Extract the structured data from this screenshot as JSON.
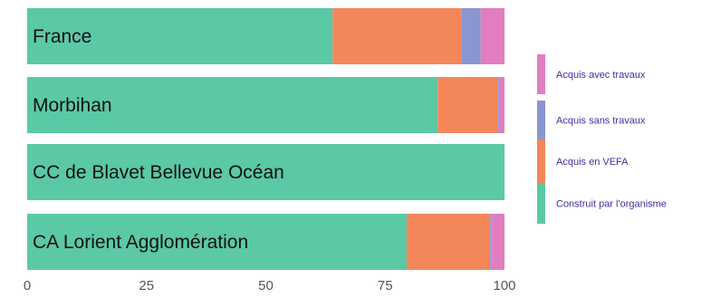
{
  "colors": {
    "construit": "#5bc8a6",
    "vefa": "#f4875a",
    "sans_travaux": "#8b95cf",
    "avec_travaux": "#e07ec0",
    "background": "#ffffff",
    "tick_text": "#555555",
    "legend_text": "#3a2fa0"
  },
  "chart_data": {
    "type": "bar",
    "orientation": "horizontal",
    "stacked": true,
    "title": "",
    "xlabel": "",
    "ylabel": "",
    "xlim": [
      0,
      100
    ],
    "x_ticks": [
      "0",
      "25",
      "50",
      "75",
      "100"
    ],
    "grid": false,
    "legend_position": "right",
    "categories": [
      "France",
      "Morbihan",
      "CC de Blavet Bellevue Océan",
      "CA Lorient Agglomération"
    ],
    "series": [
      {
        "name": "Construit par l'organisme",
        "color": "#5bc8a6",
        "values": [
          64,
          86,
          100,
          79.5
        ]
      },
      {
        "name": "Acquis en VEFA",
        "color": "#f4875a",
        "values": [
          27,
          12.5,
          0,
          17.5
        ]
      },
      {
        "name": "Acquis sans travaux",
        "color": "#8b95cf",
        "values": [
          4,
          0.3,
          0,
          0.3
        ]
      },
      {
        "name": "Acquis avec travaux",
        "color": "#e07ec0",
        "values": [
          5,
          1.2,
          0,
          2.7
        ]
      }
    ],
    "legend_order": [
      "Acquis avec travaux",
      "Acquis sans travaux",
      "Acquis en VEFA",
      "Construit par l'organisme"
    ]
  }
}
